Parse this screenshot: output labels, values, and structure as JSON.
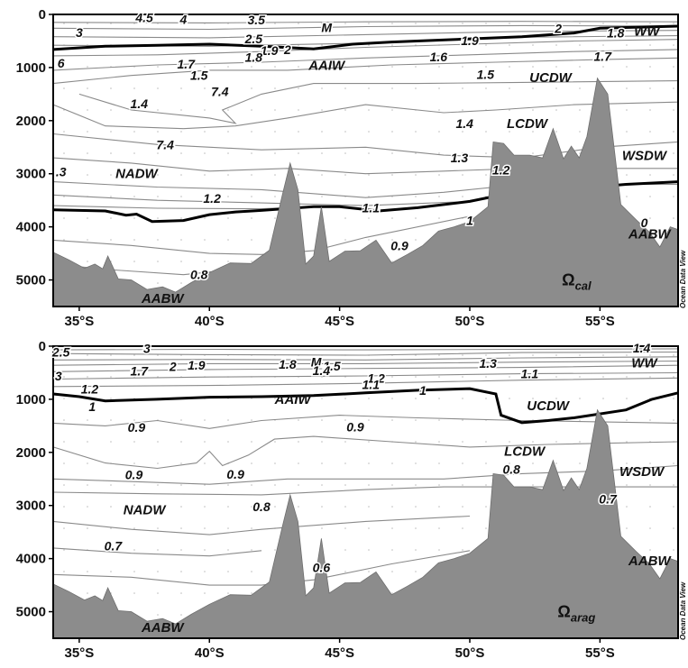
{
  "chart_data": [
    {
      "type": "contour",
      "panel": "top",
      "y_range": [
        0,
        5500
      ],
      "x_range": [
        34,
        58
      ],
      "y_ticks": [
        "0",
        "1000",
        "2000",
        "3000",
        "4000",
        "5000"
      ],
      "x_ticks": [
        "35°S",
        "40°S",
        "45°S",
        "50°S",
        "55°S"
      ],
      "x_tick_values": [
        35,
        40,
        45,
        50,
        55
      ],
      "grid": false,
      "parameter": {
        "symbol": "Ω",
        "subscript": "cal"
      },
      "bold_contour_levels": [
        1,
        2
      ],
      "contour_labels": [
        {
          "text": "4.5",
          "lat": 37.5,
          "depth": 60
        },
        {
          "text": "4",
          "lat": 39.0,
          "depth": 90
        },
        {
          "text": "3.5",
          "lat": 41.8,
          "depth": 100
        },
        {
          "text": "3",
          "lat": 35.0,
          "depth": 340
        },
        {
          "text": "2.5",
          "lat": 41.7,
          "depth": 460
        },
        {
          "text": "M",
          "lat": 44.5,
          "depth": 250
        },
        {
          "text": "2",
          "lat": 43.0,
          "depth": 660
        },
        {
          "text": "1.9",
          "lat": 42.3,
          "depth": 680
        },
        {
          "text": "1.8",
          "lat": 41.7,
          "depth": 810
        },
        {
          "text": "1.7",
          "lat": 39.1,
          "depth": 930
        },
        {
          "text": "1.6",
          "lat": 48.8,
          "depth": 800
        },
        {
          "text": "1.9",
          "lat": 50.0,
          "depth": 490
        },
        {
          "text": "2",
          "lat": 53.4,
          "depth": 260
        },
        {
          "text": "1.8",
          "lat": 55.6,
          "depth": 350
        },
        {
          "text": "1.7",
          "lat": 55.1,
          "depth": 790
        },
        {
          "text": "6",
          "lat": 34.3,
          "depth": 920
        },
        {
          "text": "1.5",
          "lat": 39.6,
          "depth": 1150
        },
        {
          "text": "7.4",
          "lat": 40.4,
          "depth": 1450
        },
        {
          "text": "1.5",
          "lat": 50.6,
          "depth": 1130
        },
        {
          "text": "1.4",
          "lat": 37.3,
          "depth": 1680
        },
        {
          "text": "1.4",
          "lat": 49.8,
          "depth": 2050
        },
        {
          "text": "7.4",
          "lat": 38.3,
          "depth": 2450
        },
        {
          "text": "1.3",
          "lat": 49.6,
          "depth": 2700
        },
        {
          "text": "1.2",
          "lat": 51.2,
          "depth": 2930
        },
        {
          "text": ".3",
          "lat": 34.3,
          "depth": 2960
        },
        {
          "text": "1.2",
          "lat": 40.1,
          "depth": 3460
        },
        {
          "text": "1.1",
          "lat": 46.2,
          "depth": 3640
        },
        {
          "text": "1",
          "lat": 50.0,
          "depth": 3880
        },
        {
          "text": "0.9",
          "lat": 47.3,
          "depth": 4350
        },
        {
          "text": "0.8",
          "lat": 39.6,
          "depth": 4900
        },
        {
          "text": "0",
          "lat": 56.7,
          "depth": 3920
        }
      ],
      "water_masses": [
        {
          "text": "WW",
          "lat": 56.8,
          "depth": 310
        },
        {
          "text": "AAIW",
          "lat": 44.5,
          "depth": 960
        },
        {
          "text": "UCDW",
          "lat": 53.1,
          "depth": 1190
        },
        {
          "text": "LCDW",
          "lat": 52.2,
          "depth": 2050
        },
        {
          "text": "WSDW",
          "lat": 56.7,
          "depth": 2660
        },
        {
          "text": "NADW",
          "lat": 37.2,
          "depth": 3000
        },
        {
          "text": "AABW",
          "lat": 56.9,
          "depth": 4130
        },
        {
          "text": "AABW",
          "lat": 38.2,
          "depth": 5350
        }
      ]
    },
    {
      "type": "contour",
      "panel": "bottom",
      "y_range": [
        0,
        5500
      ],
      "x_range": [
        34,
        58
      ],
      "y_ticks": [
        "0",
        "1000",
        "2000",
        "3000",
        "4000",
        "5000"
      ],
      "x_ticks": [
        "35°S",
        "40°S",
        "45°S",
        "50°S",
        "55°S"
      ],
      "x_tick_values": [
        35,
        40,
        45,
        50,
        55
      ],
      "grid": false,
      "parameter": {
        "symbol": "Ω",
        "subscript": "arag"
      },
      "bold_contour_levels": [
        1
      ],
      "contour_labels": [
        {
          "text": "2.5",
          "lat": 34.3,
          "depth": 110
        },
        {
          "text": "3",
          "lat": 37.6,
          "depth": 40
        },
        {
          "text": "1.7",
          "lat": 37.3,
          "depth": 470
        },
        {
          "text": "2",
          "lat": 38.6,
          "depth": 380
        },
        {
          "text": "1.9",
          "lat": 39.5,
          "depth": 360
        },
        {
          "text": "3",
          "lat": 34.2,
          "depth": 560
        },
        {
          "text": "1.2",
          "lat": 35.4,
          "depth": 810
        },
        {
          "text": "1.8",
          "lat": 43.0,
          "depth": 340
        },
        {
          "text": "M",
          "lat": 44.1,
          "depth": 300
        },
        {
          "text": "1.5",
          "lat": 44.7,
          "depth": 370
        },
        {
          "text": "1.4",
          "lat": 44.3,
          "depth": 460
        },
        {
          "text": "1.2",
          "lat": 46.4,
          "depth": 600
        },
        {
          "text": "1.1",
          "lat": 46.2,
          "depth": 720
        },
        {
          "text": "1.3",
          "lat": 50.7,
          "depth": 320
        },
        {
          "text": "1.1",
          "lat": 52.3,
          "depth": 520
        },
        {
          "text": "1.4",
          "lat": 56.6,
          "depth": 30
        },
        {
          "text": "1",
          "lat": 35.5,
          "depth": 1140
        },
        {
          "text": "1",
          "lat": 48.2,
          "depth": 830
        },
        {
          "text": "0.9",
          "lat": 37.2,
          "depth": 1530
        },
        {
          "text": "0.9",
          "lat": 45.6,
          "depth": 1520
        },
        {
          "text": "0.9",
          "lat": 37.1,
          "depth": 2420
        },
        {
          "text": "0.9",
          "lat": 41.0,
          "depth": 2410
        },
        {
          "text": "0.8",
          "lat": 51.6,
          "depth": 2320
        },
        {
          "text": "0.7",
          "lat": 55.3,
          "depth": 2880
        },
        {
          "text": "0.8",
          "lat": 42.0,
          "depth": 3020
        },
        {
          "text": "0.7",
          "lat": 36.3,
          "depth": 3760
        },
        {
          "text": "0.6",
          "lat": 44.3,
          "depth": 4170
        }
      ],
      "water_masses": [
        {
          "text": "WW",
          "lat": 56.7,
          "depth": 310
        },
        {
          "text": "AAIW",
          "lat": 43.2,
          "depth": 1000
        },
        {
          "text": "UCDW",
          "lat": 53.0,
          "depth": 1120
        },
        {
          "text": "LCDW",
          "lat": 52.1,
          "depth": 1980
        },
        {
          "text": "WSDW",
          "lat": 56.6,
          "depth": 2360
        },
        {
          "text": "NADW",
          "lat": 37.5,
          "depth": 3080
        },
        {
          "text": "AABW",
          "lat": 56.9,
          "depth": 4040
        },
        {
          "text": "AABW",
          "lat": 38.2,
          "depth": 5300
        }
      ]
    }
  ],
  "credit": "Ocean Data View"
}
